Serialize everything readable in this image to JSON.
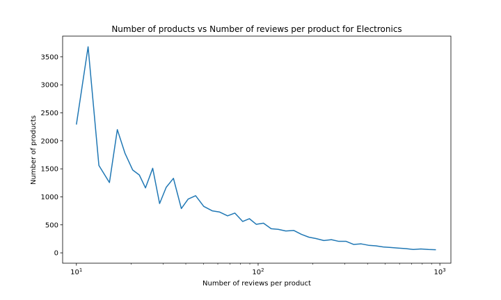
{
  "chart_data": {
    "type": "line",
    "title": "Number of products vs Number of reviews per product for  Electronics",
    "xlabel": "Number of reviews per product",
    "ylabel": "Number of products",
    "xscale": "log",
    "xlim": [
      8.4,
      1150
    ],
    "ylim": [
      -185,
      3870
    ],
    "yticks": [
      0,
      500,
      1000,
      1500,
      2000,
      2500,
      3000,
      3500
    ],
    "xticks": [
      {
        "value": 10,
        "base": "10",
        "exp": "1"
      },
      {
        "value": 100,
        "base": "10",
        "exp": "2"
      },
      {
        "value": 1000,
        "base": "10",
        "exp": "3"
      }
    ],
    "grid": false,
    "legend": "none",
    "line_color": "#1f77b4",
    "series": [
      {
        "x": [
          10,
          11.6,
          13.3,
          15.2,
          16.8,
          18.5,
          20.4,
          22.2,
          24,
          26.3,
          28.7,
          31.2,
          34.2,
          37.8,
          41.2,
          45.3,
          50.2,
          55.9,
          61.2,
          67.9,
          74.5,
          82.2,
          89.5,
          97.6,
          107,
          118,
          129,
          142,
          157,
          173,
          190,
          208,
          230,
          253,
          278,
          305,
          335,
          369,
          405,
          444,
          488,
          536,
          590,
          649,
          714,
          786,
          865,
          951
        ],
        "y": [
          2290,
          3680,
          1560,
          1255,
          2200,
          1780,
          1480,
          1390,
          1160,
          1510,
          880,
          1170,
          1330,
          790,
          960,
          1020,
          830,
          750,
          730,
          660,
          710,
          560,
          610,
          510,
          530,
          430,
          420,
          390,
          400,
          330,
          280,
          255,
          220,
          235,
          205,
          205,
          150,
          160,
          135,
          125,
          105,
          95,
          85,
          75,
          60,
          70,
          60,
          55
        ]
      }
    ]
  }
}
